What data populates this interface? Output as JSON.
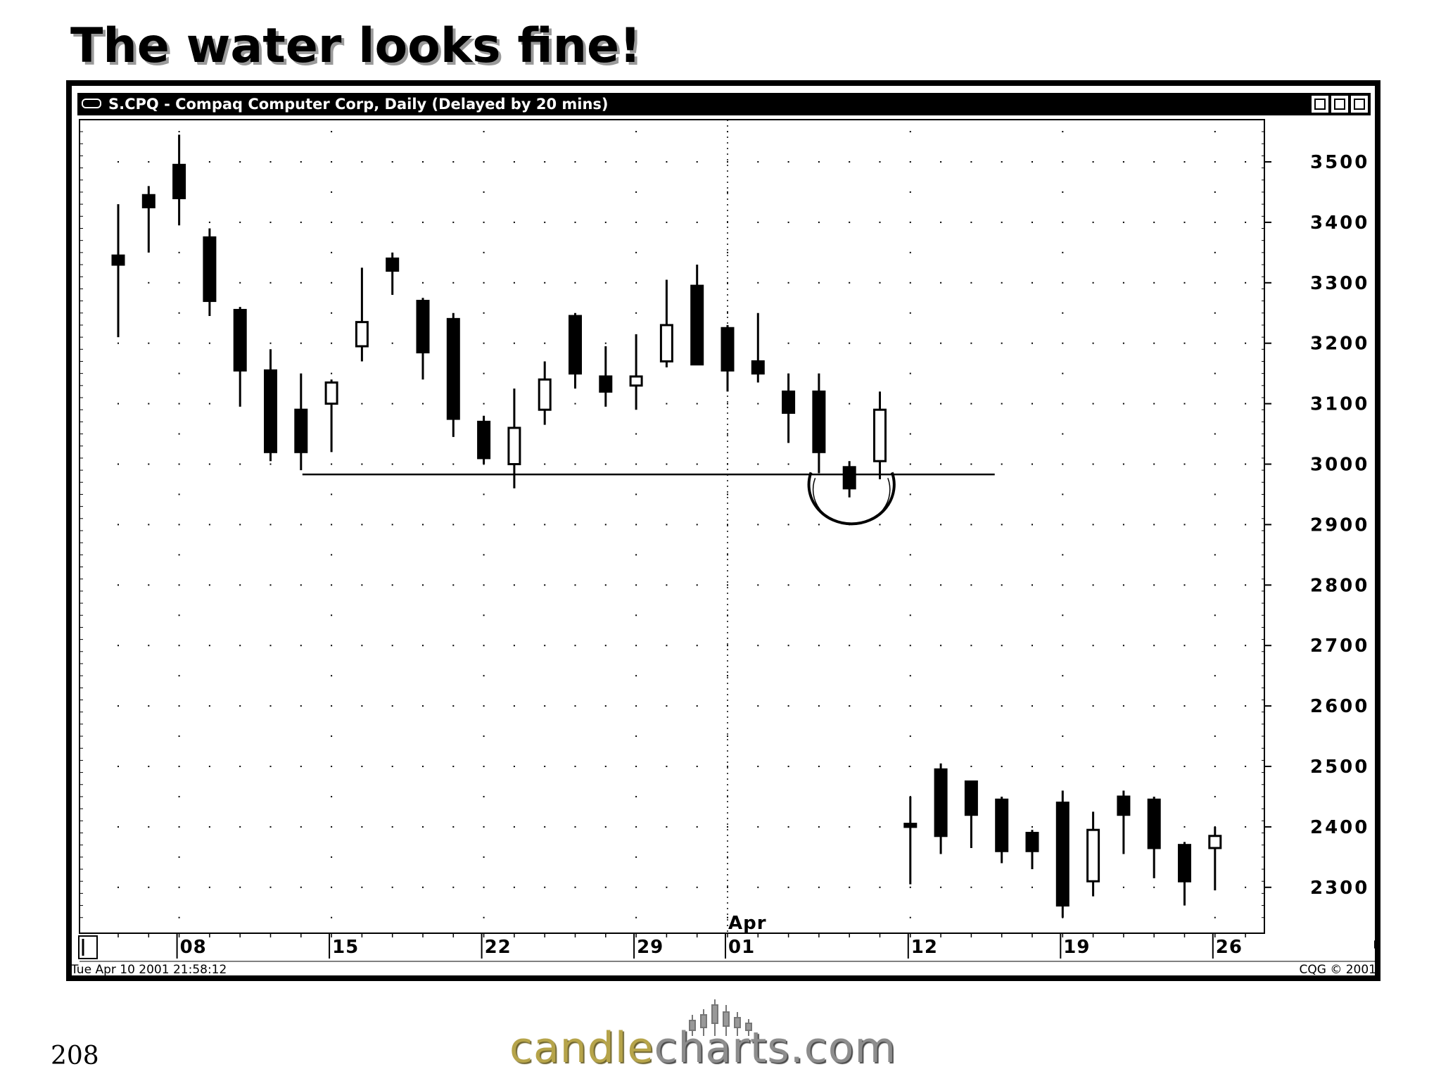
{
  "slide": {
    "title": "The water looks fine!",
    "page_number": "208"
  },
  "window": {
    "title": "S.CPQ - Compaq Computer Corp, Daily (Delayed by 20 mins)",
    "timestamp": "Tue Apr 10 2001 21:58:12",
    "copyright": "CQG © 2001",
    "buttons": [
      "minimize-icon",
      "maximize-icon",
      "close-icon"
    ]
  },
  "logo": {
    "part1": "candle",
    "part2": "charts",
    "part3": ".com"
  },
  "chart_data": {
    "type": "candlestick",
    "title": "",
    "ylim": [
      2230,
      3570
    ],
    "y_ticks": [
      3500,
      3400,
      3300,
      3200,
      3100,
      3000,
      2900,
      2800,
      2700,
      2600,
      2500,
      2400,
      2300
    ],
    "x_ticks": [
      {
        "label": "08",
        "day": 2
      },
      {
        "label": "15",
        "day": 7
      },
      {
        "label": "22",
        "day": 12
      },
      {
        "label": "29",
        "day": 17
      },
      {
        "label": "01",
        "day": 20,
        "month_label": "Apr"
      },
      {
        "label": "12",
        "day": 26
      },
      {
        "label": "19",
        "day": 31
      },
      {
        "label": "26",
        "day": 36
      }
    ],
    "candles": [
      {
        "day": 0,
        "open": 3345,
        "high": 3430,
        "low": 3210,
        "close": 3330
      },
      {
        "day": 1,
        "open": 3445,
        "high": 3460,
        "low": 3350,
        "close": 3425
      },
      {
        "day": 2,
        "open": 3495,
        "high": 3545,
        "low": 3395,
        "close": 3440
      },
      {
        "day": 3,
        "open": 3375,
        "high": 3390,
        "low": 3245,
        "close": 3270
      },
      {
        "day": 4,
        "open": 3255,
        "high": 3260,
        "low": 3095,
        "close": 3155
      },
      {
        "day": 5,
        "open": 3155,
        "high": 3190,
        "low": 3005,
        "close": 3020
      },
      {
        "day": 6,
        "open": 3090,
        "high": 3150,
        "low": 2990,
        "close": 3020
      },
      {
        "day": 7,
        "open": 3100,
        "high": 3140,
        "low": 3020,
        "close": 3135
      },
      {
        "day": 8,
        "open": 3195,
        "high": 3325,
        "low": 3170,
        "close": 3235
      },
      {
        "day": 9,
        "open": 3340,
        "high": 3350,
        "low": 3280,
        "close": 3320
      },
      {
        "day": 10,
        "open": 3270,
        "high": 3275,
        "low": 3140,
        "close": 3185
      },
      {
        "day": 11,
        "open": 3240,
        "high": 3250,
        "low": 3045,
        "close": 3075
      },
      {
        "day": 12,
        "open": 3070,
        "high": 3080,
        "low": 3000,
        "close": 3010
      },
      {
        "day": 13,
        "open": 3000,
        "high": 3125,
        "low": 2960,
        "close": 3060
      },
      {
        "day": 14,
        "open": 3090,
        "high": 3170,
        "low": 3065,
        "close": 3140
      },
      {
        "day": 15,
        "open": 3245,
        "high": 3250,
        "low": 3125,
        "close": 3150
      },
      {
        "day": 16,
        "open": 3145,
        "high": 3195,
        "low": 3095,
        "close": 3120
      },
      {
        "day": 17,
        "open": 3130,
        "high": 3215,
        "low": 3090,
        "close": 3145
      },
      {
        "day": 18,
        "open": 3170,
        "high": 3305,
        "low": 3160,
        "close": 3230
      },
      {
        "day": 19,
        "open": 3295,
        "high": 3330,
        "low": 3165,
        "close": 3165
      },
      {
        "day": 20,
        "open": 3225,
        "high": 3230,
        "low": 3120,
        "close": 3155
      },
      {
        "day": 21,
        "open": 3170,
        "high": 3250,
        "low": 3135,
        "close": 3150
      },
      {
        "day": 22,
        "open": 3120,
        "high": 3150,
        "low": 3035,
        "close": 3085
      },
      {
        "day": 23,
        "open": 3120,
        "high": 3150,
        "low": 2985,
        "close": 3020
      },
      {
        "day": 24,
        "open": 2995,
        "high": 3005,
        "low": 2945,
        "close": 2960
      },
      {
        "day": 25,
        "open": 3005,
        "high": 3120,
        "low": 2975,
        "close": 3090
      },
      {
        "day": 26,
        "open": 2405,
        "high": 2450,
        "low": 2305,
        "close": 2400
      },
      {
        "day": 27,
        "open": 2495,
        "high": 2505,
        "low": 2355,
        "close": 2385
      },
      {
        "day": 28,
        "open": 2475,
        "high": 2475,
        "low": 2365,
        "close": 2420
      },
      {
        "day": 29,
        "open": 2445,
        "high": 2450,
        "low": 2340,
        "close": 2360
      },
      {
        "day": 30,
        "open": 2390,
        "high": 2395,
        "low": 2330,
        "close": 2360
      },
      {
        "day": 31,
        "open": 2440,
        "high": 2460,
        "low": 2250,
        "close": 2270
      },
      {
        "day": 32,
        "open": 2310,
        "high": 2425,
        "low": 2285,
        "close": 2395
      },
      {
        "day": 33,
        "open": 2450,
        "high": 2460,
        "low": 2355,
        "close": 2420
      },
      {
        "day": 34,
        "open": 2445,
        "high": 2450,
        "low": 2315,
        "close": 2365
      },
      {
        "day": 35,
        "open": 2370,
        "high": 2375,
        "low": 2270,
        "close": 2310
      },
      {
        "day": 36,
        "open": 2365,
        "high": 2400,
        "low": 2295,
        "close": 2385
      }
    ],
    "annotations": [
      {
        "type": "horizontal_line",
        "y": 2983,
        "from_day": 6,
        "to_day": 29
      },
      {
        "type": "circle",
        "center_day": 24,
        "y": 2970,
        "radius_days": 1.4
      }
    ],
    "vertical_marker_day": 20,
    "grid": "dotted"
  }
}
